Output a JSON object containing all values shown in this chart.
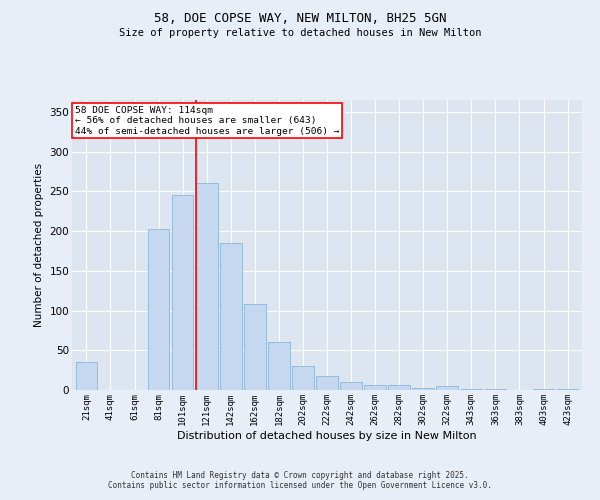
{
  "title1": "58, DOE COPSE WAY, NEW MILTON, BH25 5GN",
  "title2": "Size of property relative to detached houses in New Milton",
  "xlabel": "Distribution of detached houses by size in New Milton",
  "ylabel": "Number of detached properties",
  "categories": [
    "21sqm",
    "41sqm",
    "61sqm",
    "81sqm",
    "101sqm",
    "121sqm",
    "142sqm",
    "162sqm",
    "182sqm",
    "202sqm",
    "222sqm",
    "242sqm",
    "262sqm",
    "282sqm",
    "302sqm",
    "322sqm",
    "343sqm",
    "363sqm",
    "383sqm",
    "403sqm",
    "423sqm"
  ],
  "values": [
    35,
    0,
    0,
    203,
    245,
    260,
    185,
    108,
    60,
    30,
    18,
    10,
    6,
    6,
    2,
    5,
    1,
    1,
    0,
    1,
    1
  ],
  "bar_color": "#c5d8f0",
  "bar_edge_color": "#7bafd4",
  "bar_edge_width": 0.5,
  "red_line_index": 5,
  "annotation_line1": "58 DOE COPSE WAY: 114sqm",
  "annotation_line2": "← 56% of detached houses are smaller (643)",
  "annotation_line3": "44% of semi-detached houses are larger (506) →",
  "annotation_box_color": "white",
  "annotation_box_edge": "red",
  "ylim": [
    0,
    365
  ],
  "yticks": [
    0,
    50,
    100,
    150,
    200,
    250,
    300,
    350
  ],
  "bg_color": "#e8eef8",
  "plot_bg_color": "#dde6f0",
  "footer1": "Contains HM Land Registry data © Crown copyright and database right 2025.",
  "footer2": "Contains public sector information licensed under the Open Government Licence v3.0."
}
